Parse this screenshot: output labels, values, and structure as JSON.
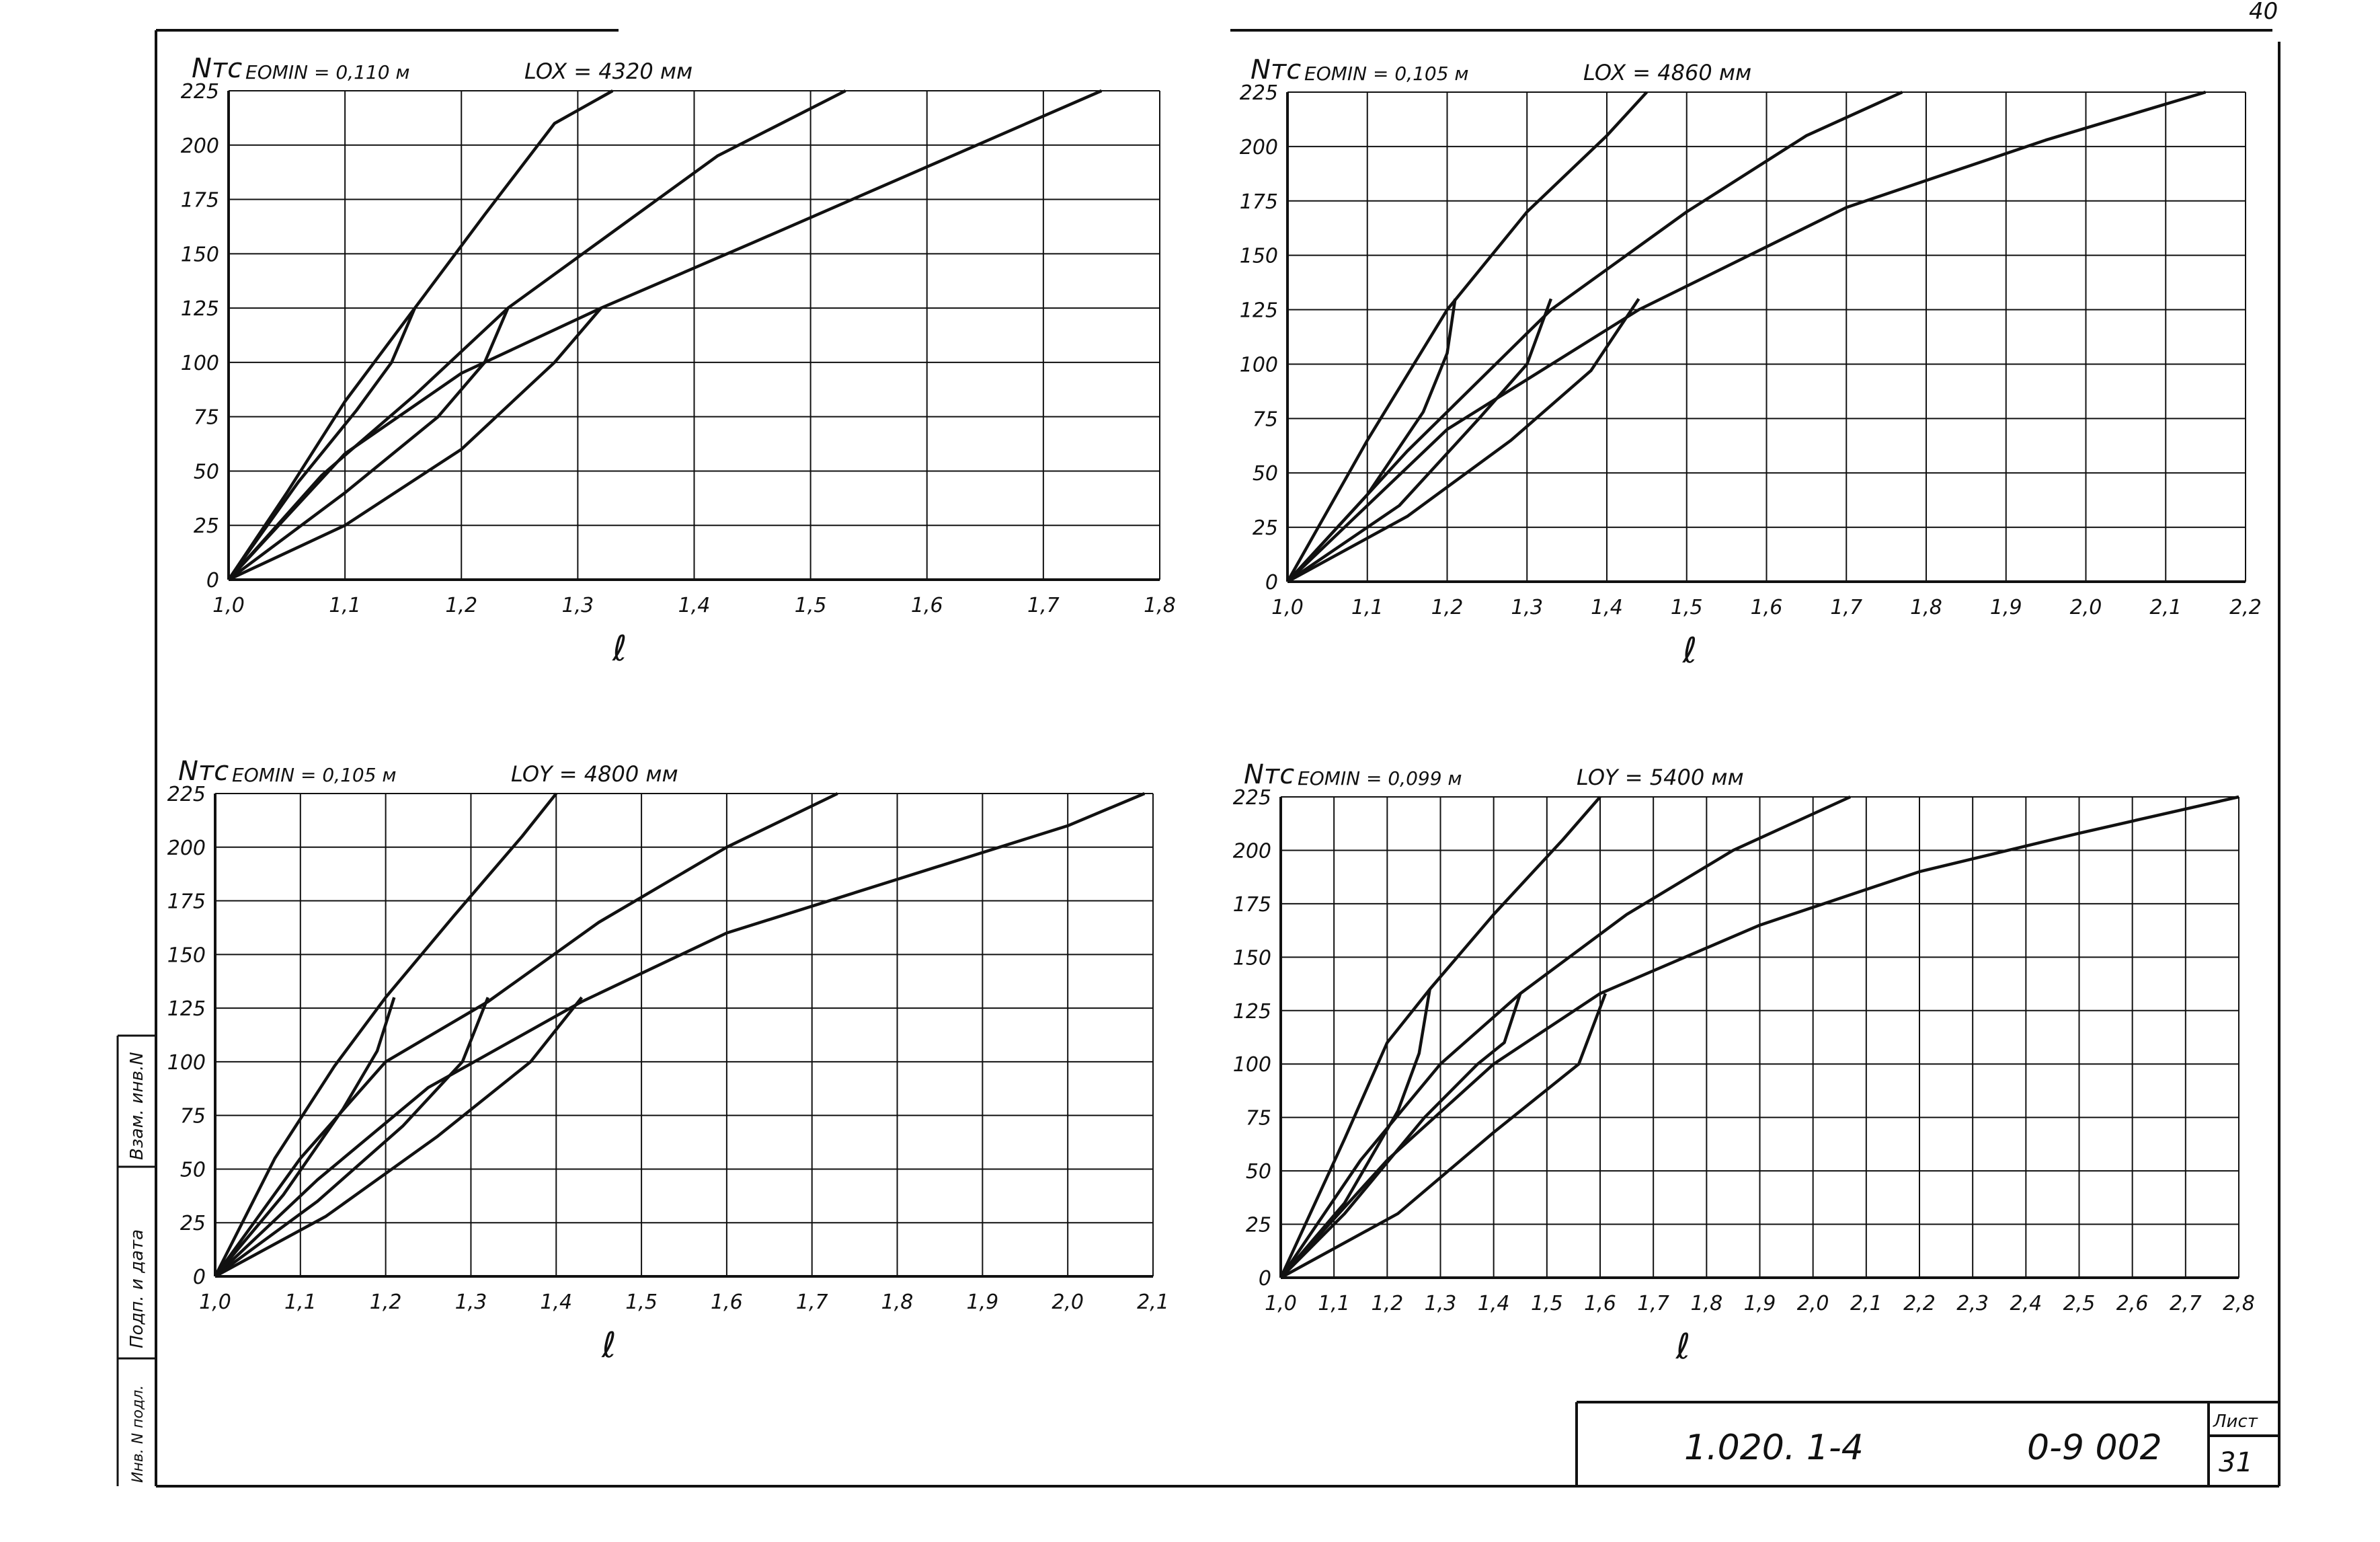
{
  "sheet": {
    "corner_mark": "40",
    "stamp_labels": [
      "Взам. инв.N",
      "Подп. и дата",
      "Инв. N подл."
    ],
    "title_block": {
      "code": "1.020. 1-4",
      "number": "0-9 002",
      "sheet_label": "Лист",
      "sheet_number": "31"
    }
  },
  "chart_data": [
    {
      "type": "line",
      "ylabel": "Nтс",
      "xlabel": "ℓ",
      "param1": "EOMIN = 0,110 м",
      "param2": "LOX = 4320 мм",
      "x_ticks": [
        "1,0",
        "1,1",
        "1,2",
        "1,3",
        "1,4",
        "1,5",
        "1,6",
        "1,7",
        "1,8"
      ],
      "y_ticks": [
        "0",
        "25",
        "50",
        "75",
        "100",
        "125",
        "150",
        "175",
        "200",
        "225"
      ],
      "xlim": [
        1.0,
        1.8
      ],
      "ylim": [
        0,
        225
      ],
      "grid": true,
      "series": [
        {
          "points": [
            [
              1.0,
              0
            ],
            [
              1.05,
              40
            ],
            [
              1.1,
              82
            ],
            [
              1.16,
              125
            ],
            [
              1.22,
              168
            ],
            [
              1.28,
              210
            ],
            [
              1.33,
              225
            ]
          ]
        },
        {
          "points": [
            [
              1.0,
              0
            ],
            [
              1.08,
              48
            ],
            [
              1.16,
              85
            ],
            [
              1.24,
              125
            ],
            [
              1.33,
              160
            ],
            [
              1.42,
              195
            ],
            [
              1.53,
              225
            ]
          ]
        },
        {
          "points": [
            [
              1.0,
              0
            ],
            [
              1.1,
              58
            ],
            [
              1.2,
              95
            ],
            [
              1.32,
              125
            ],
            [
              1.45,
              155
            ],
            [
              1.6,
              190
            ],
            [
              1.75,
              225
            ]
          ]
        },
        {
          "points": [
            [
              1.16,
              125
            ],
            [
              1.14,
              100
            ],
            [
              1.11,
              78
            ],
            [
              1.06,
              45
            ],
            [
              1.0,
              0
            ]
          ]
        },
        {
          "points": [
            [
              1.24,
              125
            ],
            [
              1.22,
              100
            ],
            [
              1.18,
              75
            ],
            [
              1.1,
              40
            ],
            [
              1.0,
              0
            ]
          ]
        },
        {
          "points": [
            [
              1.32,
              125
            ],
            [
              1.28,
              100
            ],
            [
              1.2,
              60
            ],
            [
              1.1,
              25
            ],
            [
              1.0,
              0
            ]
          ]
        }
      ]
    },
    {
      "type": "line",
      "ylabel": "Nтс",
      "xlabel": "ℓ",
      "param1": "EOMIN = 0,105 м",
      "param2": "LOX = 4860 мм",
      "x_ticks": [
        "1,0",
        "1,1",
        "1,2",
        "1,3",
        "1,4",
        "1,5",
        "1,6",
        "1,7",
        "1,8",
        "1,9",
        "2,0",
        "2,1",
        "2,2"
      ],
      "y_ticks": [
        "0",
        "25",
        "50",
        "75",
        "100",
        "125",
        "150",
        "175",
        "200",
        "225"
      ],
      "xlim": [
        1.0,
        2.2
      ],
      "ylim": [
        0,
        225
      ],
      "grid": true,
      "series": [
        {
          "points": [
            [
              1.0,
              0
            ],
            [
              1.1,
              65
            ],
            [
              1.2,
              125
            ],
            [
              1.3,
              170
            ],
            [
              1.4,
              205
            ],
            [
              1.45,
              225
            ]
          ]
        },
        {
          "points": [
            [
              1.0,
              0
            ],
            [
              1.15,
              60
            ],
            [
              1.33,
              125
            ],
            [
              1.5,
              170
            ],
            [
              1.65,
              205
            ],
            [
              1.77,
              225
            ]
          ]
        },
        {
          "points": [
            [
              1.0,
              0
            ],
            [
              1.2,
              70
            ],
            [
              1.44,
              125
            ],
            [
              1.7,
              172
            ],
            [
              1.95,
              203
            ],
            [
              2.15,
              225
            ]
          ]
        },
        {
          "points": [
            [
              1.21,
              130
            ],
            [
              1.2,
              105
            ],
            [
              1.17,
              78
            ],
            [
              1.1,
              40
            ],
            [
              1.0,
              0
            ]
          ]
        },
        {
          "points": [
            [
              1.33,
              130
            ],
            [
              1.3,
              100
            ],
            [
              1.24,
              75
            ],
            [
              1.14,
              35
            ],
            [
              1.0,
              0
            ]
          ]
        },
        {
          "points": [
            [
              1.44,
              130
            ],
            [
              1.38,
              97
            ],
            [
              1.28,
              65
            ],
            [
              1.15,
              30
            ],
            [
              1.0,
              0
            ]
          ]
        }
      ]
    },
    {
      "type": "line",
      "ylabel": "Nтс",
      "xlabel": "ℓ",
      "param1": "EOMIN = 0,105 м",
      "param2": "LOY = 4800 мм",
      "x_ticks": [
        "1,0",
        "1,1",
        "1,2",
        "1,3",
        "1,4",
        "1,5",
        "1,6",
        "1,7",
        "1,8",
        "1,9",
        "2,0",
        "2,1"
      ],
      "y_ticks": [
        "0",
        "25",
        "50",
        "75",
        "100",
        "125",
        "150",
        "175",
        "200",
        "225"
      ],
      "xlim": [
        1.0,
        2.1
      ],
      "ylim": [
        0,
        225
      ],
      "grid": true,
      "series": [
        {
          "points": [
            [
              1.0,
              0
            ],
            [
              1.07,
              55
            ],
            [
              1.14,
              98
            ],
            [
              1.2,
              130
            ],
            [
              1.28,
              168
            ],
            [
              1.36,
              205
            ],
            [
              1.4,
              225
            ]
          ]
        },
        {
          "points": [
            [
              1.0,
              0
            ],
            [
              1.1,
              55
            ],
            [
              1.2,
              100
            ],
            [
              1.32,
              128
            ],
            [
              1.45,
              165
            ],
            [
              1.6,
              200
            ],
            [
              1.73,
              225
            ]
          ]
        },
        {
          "points": [
            [
              1.0,
              0
            ],
            [
              1.12,
              45
            ],
            [
              1.25,
              88
            ],
            [
              1.43,
              128
            ],
            [
              1.6,
              160
            ],
            [
              1.8,
              185
            ],
            [
              2.0,
              210
            ],
            [
              2.09,
              225
            ]
          ]
        },
        {
          "points": [
            [
              1.21,
              130
            ],
            [
              1.19,
              105
            ],
            [
              1.15,
              78
            ],
            [
              1.08,
              38
            ],
            [
              1.0,
              0
            ]
          ]
        },
        {
          "points": [
            [
              1.32,
              130
            ],
            [
              1.29,
              100
            ],
            [
              1.22,
              70
            ],
            [
              1.12,
              35
            ],
            [
              1.0,
              0
            ]
          ]
        },
        {
          "points": [
            [
              1.43,
              130
            ],
            [
              1.37,
              100
            ],
            [
              1.26,
              65
            ],
            [
              1.13,
              28
            ],
            [
              1.0,
              0
            ]
          ]
        }
      ]
    },
    {
      "type": "line",
      "ylabel": "Nтс",
      "xlabel": "ℓ",
      "param1": "EOMIN = 0,099 м",
      "param2": "LOY = 5400 мм",
      "x_ticks": [
        "1,0",
        "1,1",
        "1,2",
        "1,3",
        "1,4",
        "1,5",
        "1,6",
        "1,7",
        "1,8",
        "1,9",
        "2,0",
        "2,1",
        "2,2",
        "2,3",
        "2,4",
        "2,5",
        "2,6",
        "2,7",
        "2,8"
      ],
      "y_ticks": [
        "0",
        "25",
        "50",
        "75",
        "100",
        "125",
        "150",
        "175",
        "200",
        "225"
      ],
      "xlim": [
        1.0,
        2.8
      ],
      "ylim": [
        0,
        225
      ],
      "grid": true,
      "series": [
        {
          "points": [
            [
              1.0,
              0
            ],
            [
              1.12,
              65
            ],
            [
              1.2,
              110
            ],
            [
              1.28,
              135
            ],
            [
              1.4,
              170
            ],
            [
              1.53,
              205
            ],
            [
              1.6,
              225
            ]
          ]
        },
        {
          "points": [
            [
              1.0,
              0
            ],
            [
              1.15,
              55
            ],
            [
              1.3,
              100
            ],
            [
              1.45,
              133
            ],
            [
              1.65,
              170
            ],
            [
              1.85,
              200
            ],
            [
              2.07,
              225
            ]
          ]
        },
        {
          "points": [
            [
              1.0,
              0
            ],
            [
              1.2,
              55
            ],
            [
              1.4,
              100
            ],
            [
              1.6,
              133
            ],
            [
              1.9,
              165
            ],
            [
              2.2,
              190
            ],
            [
              2.5,
              208
            ],
            [
              2.8,
              225
            ]
          ]
        },
        {
          "points": [
            [
              1.28,
              135
            ],
            [
              1.26,
              105
            ],
            [
              1.22,
              78
            ],
            [
              1.12,
              35
            ],
            [
              1.0,
              0
            ]
          ]
        },
        {
          "points": [
            [
              1.45,
              133
            ],
            [
              1.42,
              110
            ],
            [
              1.37,
              100
            ],
            [
              1.27,
              75
            ],
            [
              1.12,
              30
            ],
            [
              1.0,
              0
            ]
          ]
        },
        {
          "points": [
            [
              1.61,
              133
            ],
            [
              1.56,
              100
            ],
            [
              1.4,
              68
            ],
            [
              1.22,
              30
            ],
            [
              1.0,
              0
            ]
          ]
        }
      ]
    }
  ]
}
